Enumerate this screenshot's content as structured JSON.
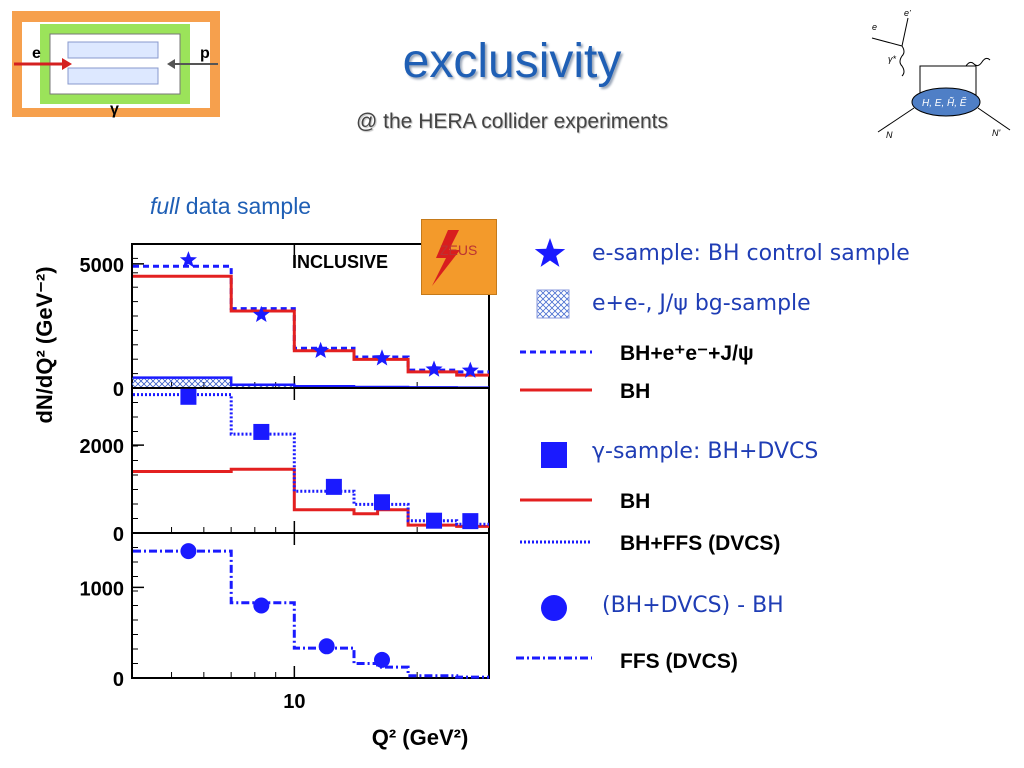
{
  "slide": {
    "title": "exclusivity",
    "subtitle": "@ the HERA collider experiments",
    "sample_label_em": "full",
    "sample_label_rest": " data sample",
    "detector": {
      "e": "e",
      "p": "p",
      "gamma": "γ"
    },
    "zeus_logo": "ZEUS",
    "feynman": {
      "e_in": "e",
      "e_out": "e'",
      "gamma_star": "γ*",
      "N_in": "N",
      "N_out": "N'",
      "blob": "H, E, H̃, Ẽ"
    }
  },
  "legend": {
    "e_sample": "e-sample:  BH control sample",
    "bg_sample": "e+e-, J/ψ   bg-sample",
    "bh_ee_jpsi": "BH+e⁺e⁻+J/ψ",
    "bh1": "BH",
    "gamma_sample": "γ-sample:  BH+DVCS",
    "bh2": "BH",
    "bh_ffs": "BH+FFS (DVCS)",
    "diff_sample": "(BH+DVCS) - BH",
    "ffs": "FFS (DVCS)"
  },
  "colors": {
    "blue": "#1a1aff",
    "red": "#e32020",
    "title_blue": "#1f5fb5"
  },
  "chart_data": [
    {
      "type": "step-histogram",
      "panel": "top",
      "annotation": "INCLUSIVE",
      "ylabel": "dN/dQ² (GeV⁻²)",
      "yticks": [
        "5000",
        "0"
      ],
      "ylim": [
        0,
        5800
      ],
      "xlog": true,
      "xlim": [
        4,
        30
      ],
      "bin_edges": [
        4,
        7,
        10,
        14,
        19,
        25,
        30
      ],
      "series": [
        {
          "name": "BH+e⁺e⁻+J/ψ",
          "style": "dashed",
          "values": [
            4900,
            3200,
            1600,
            1250,
            720,
            650
          ]
        },
        {
          "name": "BH",
          "style": "solid",
          "values": [
            4500,
            3100,
            1500,
            1150,
            650,
            520
          ]
        },
        {
          "name": "e+e-, J/ψ",
          "style": "hatched",
          "values": [
            420,
            130,
            70,
            40,
            25,
            15
          ]
        }
      ],
      "points": {
        "name": "e-sample",
        "marker": "star",
        "x": [
          5.5,
          8.3,
          11.6,
          16.4,
          22,
          27
        ],
        "y": [
          5150,
          2950,
          1500,
          1200,
          750,
          700
        ]
      }
    },
    {
      "type": "step-histogram",
      "panel": "middle",
      "yticks": [
        "2000",
        "0"
      ],
      "ylim": [
        0,
        3300
      ],
      "xlog": true,
      "xlim": [
        4,
        30
      ],
      "bin_edges": [
        4,
        7,
        10,
        11.5,
        14,
        16,
        19,
        25,
        30
      ],
      "series": [
        {
          "name": "BH",
          "style": "solid",
          "values": [
            1400,
            1450,
            530,
            530,
            440,
            530,
            180,
            150
          ]
        },
        {
          "name": "BH+FFS (DVCS)",
          "style": "dotted",
          "values": [
            3150,
            2250,
            950,
            950,
            650,
            650,
            280,
            200
          ]
        }
      ],
      "points": {
        "name": "γ-sample",
        "marker": "square",
        "x": [
          5.5,
          8.3,
          12.5,
          16.4,
          22,
          27
        ],
        "y": [
          3100,
          2300,
          1050,
          700,
          280,
          270
        ]
      }
    },
    {
      "type": "step-histogram",
      "panel": "bottom",
      "yticks": [
        "1000",
        "0"
      ],
      "ylim": [
        0,
        1600
      ],
      "xlog": true,
      "xlim": [
        4,
        30
      ],
      "xticks": [
        "10"
      ],
      "xlabel": "Q² (GeV²)",
      "bin_edges": [
        4,
        7,
        10,
        11.5,
        14,
        16,
        19,
        25,
        30
      ],
      "series": [
        {
          "name": "FFS (DVCS)",
          "style": "dashdot",
          "values": [
            1400,
            830,
            330,
            330,
            160,
            120,
            25,
            10
          ]
        }
      ],
      "points": {
        "name": "(BH+DVCS) - BH",
        "marker": "circle",
        "x": [
          5.5,
          8.3,
          12,
          16.4
        ],
        "y": [
          1400,
          800,
          350,
          200
        ]
      }
    }
  ]
}
